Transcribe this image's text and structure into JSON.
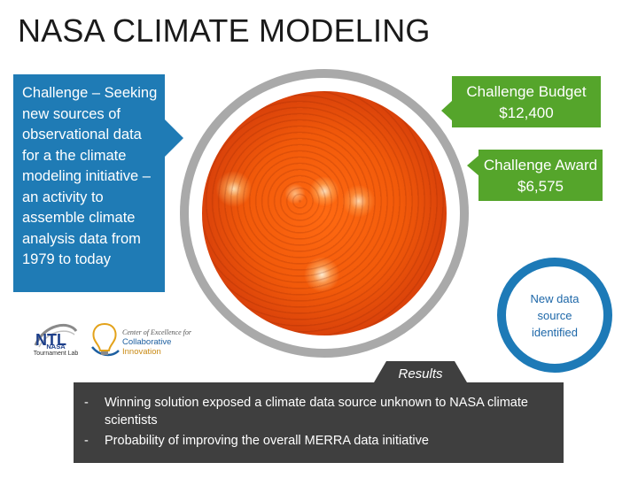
{
  "slide": {
    "title": "NASA CLIMATE MODELING",
    "challenge_text": "Challenge – Seeking new sources of observational data for a the climate modeling initiative – an activity to assemble climate analysis data from 1979 to today",
    "budget": {
      "label": "Challenge Budget",
      "value": "$12,400"
    },
    "award": {
      "label": "Challenge Award",
      "value": "$6,575"
    },
    "new_data_text": "New data source identified",
    "results_label": "Results",
    "results": [
      "Winning solution exposed a climate data source unknown to NASA climate scientists",
      "Probability of improving the overall MERRA data initiative"
    ],
    "bullet_char": "-"
  },
  "logos": {
    "ntl": {
      "mark": "NTL",
      "line1": "NASA",
      "line2": "Tournament Lab"
    },
    "coe": {
      "line1": "Center of Excellence for",
      "line2": "Collaborative",
      "line3": "Innovation"
    }
  },
  "colors": {
    "challenge_blue": "#1f7bb5",
    "green": "#55a52b",
    "ring_gray": "#a9a9a9",
    "results_dark": "#3f3f3f",
    "circle_blue": "#1d7ab7"
  }
}
